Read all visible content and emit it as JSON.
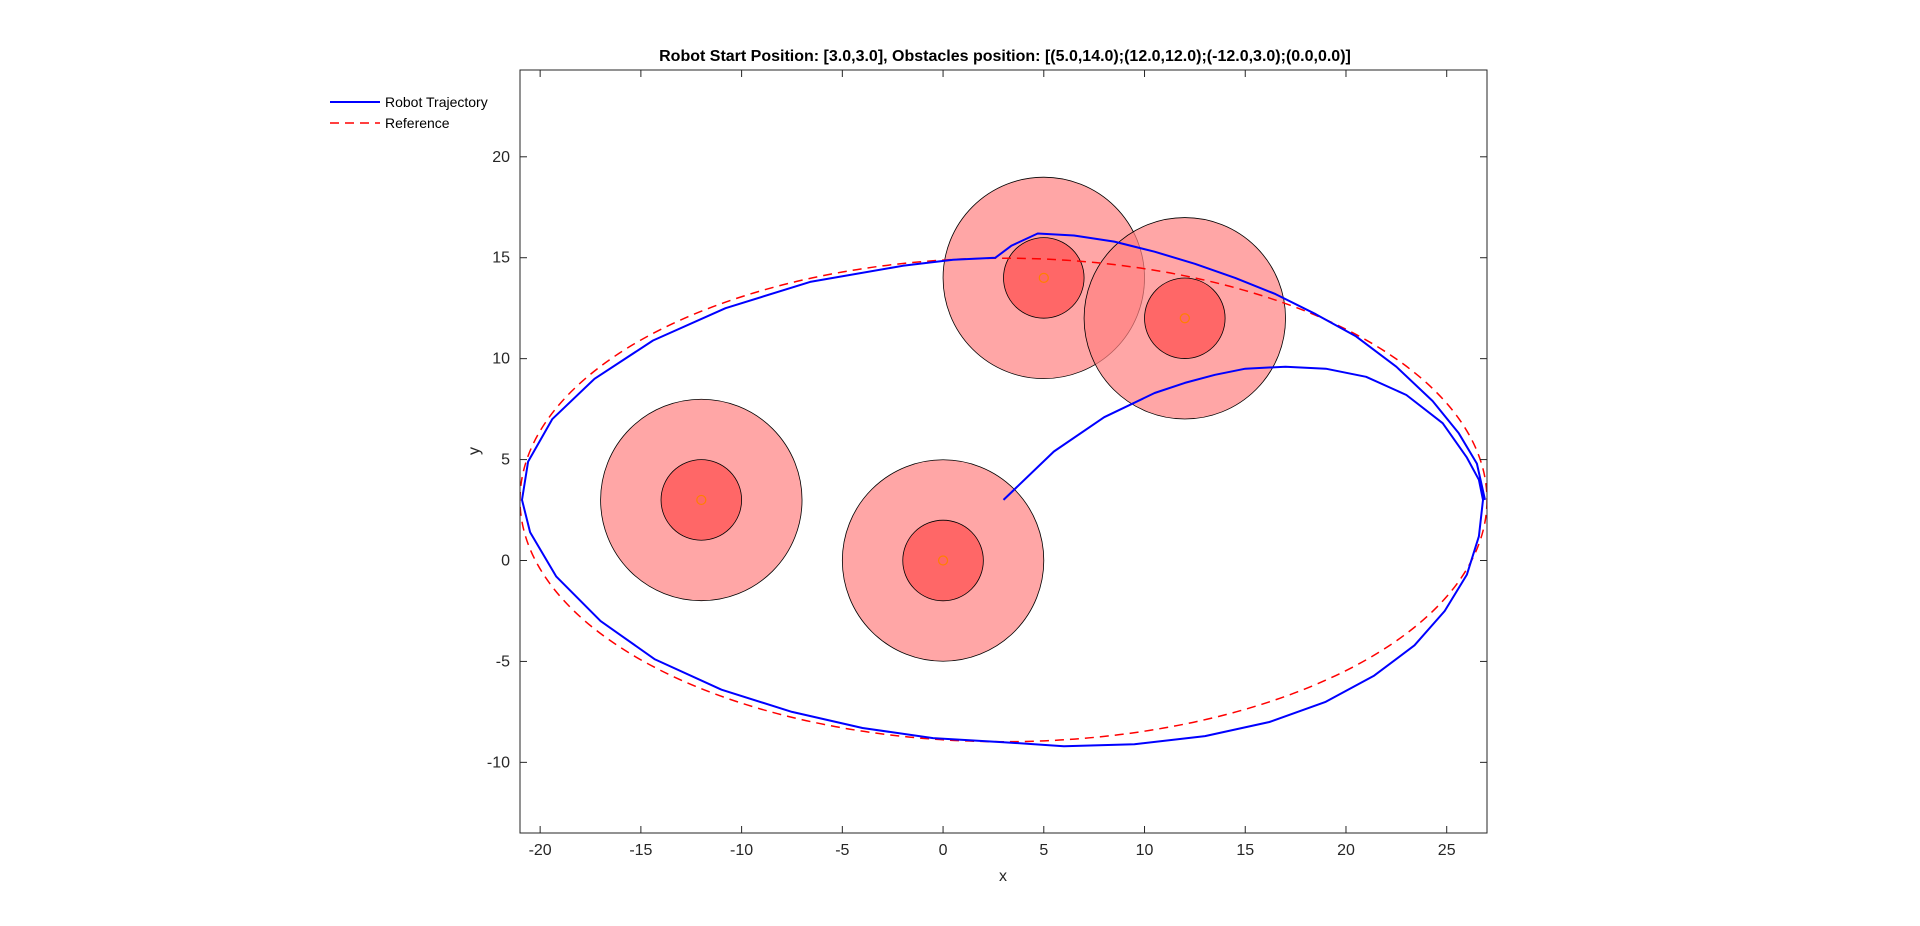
{
  "chart_data": {
    "type": "line",
    "title": "Robot Start Position: [3.0,3.0], Obstacles position: [(5.0,14.0);(12.0,12.0);(-12.0,3.0);(0.0,0.0)]",
    "xlabel": "x",
    "ylabel": "y",
    "xlim": [
      -21,
      27
    ],
    "ylim": [
      -13.5,
      24.3
    ],
    "xticks": [
      -20,
      -15,
      -10,
      -5,
      0,
      5,
      10,
      15,
      20,
      25
    ],
    "yticks": [
      -10,
      -5,
      0,
      5,
      10,
      15,
      20
    ],
    "grid": false,
    "legend_position": "top-left",
    "series": [
      {
        "name": "Robot Trajectory",
        "color": "#0000ff",
        "style": "solid",
        "points": [
          [
            3,
            3
          ],
          [
            5.5,
            5.4
          ],
          [
            8,
            7.1
          ],
          [
            10.5,
            8.3
          ],
          [
            12,
            8.8
          ],
          [
            13.5,
            9.2
          ],
          [
            15,
            9.5
          ],
          [
            17,
            9.6
          ],
          [
            19,
            9.5
          ],
          [
            21,
            9.1
          ],
          [
            23,
            8.2
          ],
          [
            24.8,
            6.8
          ],
          [
            26,
            5.1
          ],
          [
            26.6,
            4.0
          ],
          [
            26.8,
            3.0
          ],
          [
            26.6,
            1.2
          ],
          [
            26.0,
            -0.7
          ],
          [
            24.9,
            -2.5
          ],
          [
            23.4,
            -4.2
          ],
          [
            21.4,
            -5.7
          ],
          [
            19.0,
            -7.0
          ],
          [
            16.2,
            -8.0
          ],
          [
            13.0,
            -8.7
          ],
          [
            9.5,
            -9.1
          ],
          [
            6.0,
            -9.2
          ],
          [
            3.0,
            -9.0
          ],
          [
            -0.5,
            -8.8
          ],
          [
            -4.0,
            -8.3
          ],
          [
            -7.5,
            -7.5
          ],
          [
            -11.0,
            -6.4
          ],
          [
            -14.3,
            -4.9
          ],
          [
            -17.0,
            -3.0
          ],
          [
            -19.2,
            -0.8
          ],
          [
            -20.5,
            1.4
          ],
          [
            -20.9,
            3.0
          ],
          [
            -20.6,
            4.9
          ],
          [
            -19.4,
            7.0
          ],
          [
            -17.3,
            9.0
          ],
          [
            -14.4,
            10.9
          ],
          [
            -10.8,
            12.5
          ],
          [
            -6.6,
            13.8
          ],
          [
            -2.0,
            14.6
          ],
          [
            0.5,
            14.9
          ],
          [
            2.6,
            15.0
          ],
          [
            3.4,
            15.6
          ],
          [
            4.7,
            16.2
          ],
          [
            6.5,
            16.1
          ],
          [
            8.5,
            15.8
          ],
          [
            10.5,
            15.3
          ],
          [
            12.5,
            14.7
          ],
          [
            14.5,
            14.0
          ],
          [
            16.5,
            13.2
          ],
          [
            18.5,
            12.2
          ],
          [
            20.5,
            11.1
          ],
          [
            22.5,
            9.6
          ],
          [
            24.3,
            7.9
          ],
          [
            25.6,
            6.3
          ],
          [
            26.5,
            4.8
          ],
          [
            26.9,
            3.0
          ]
        ]
      },
      {
        "name": "Reference",
        "color": "#ff0000",
        "style": "dashed",
        "ellipse": {
          "center": [
            3,
            3
          ],
          "rx": 24,
          "ry": 12
        }
      }
    ],
    "obstacles": [
      {
        "center": [
          5,
          14
        ],
        "inner_radius": 2,
        "outer_radius": 5
      },
      {
        "center": [
          12,
          12
        ],
        "inner_radius": 2,
        "outer_radius": 5
      },
      {
        "center": [
          -12,
          3
        ],
        "inner_radius": 2,
        "outer_radius": 5
      },
      {
        "center": [
          0,
          0
        ],
        "inner_radius": 2,
        "outer_radius": 5
      }
    ],
    "colors": {
      "outer_fill": "#ff8080",
      "inner_fill": "#ff4d4d",
      "center_marker": "#ff7f00",
      "axes": "#262626"
    }
  }
}
